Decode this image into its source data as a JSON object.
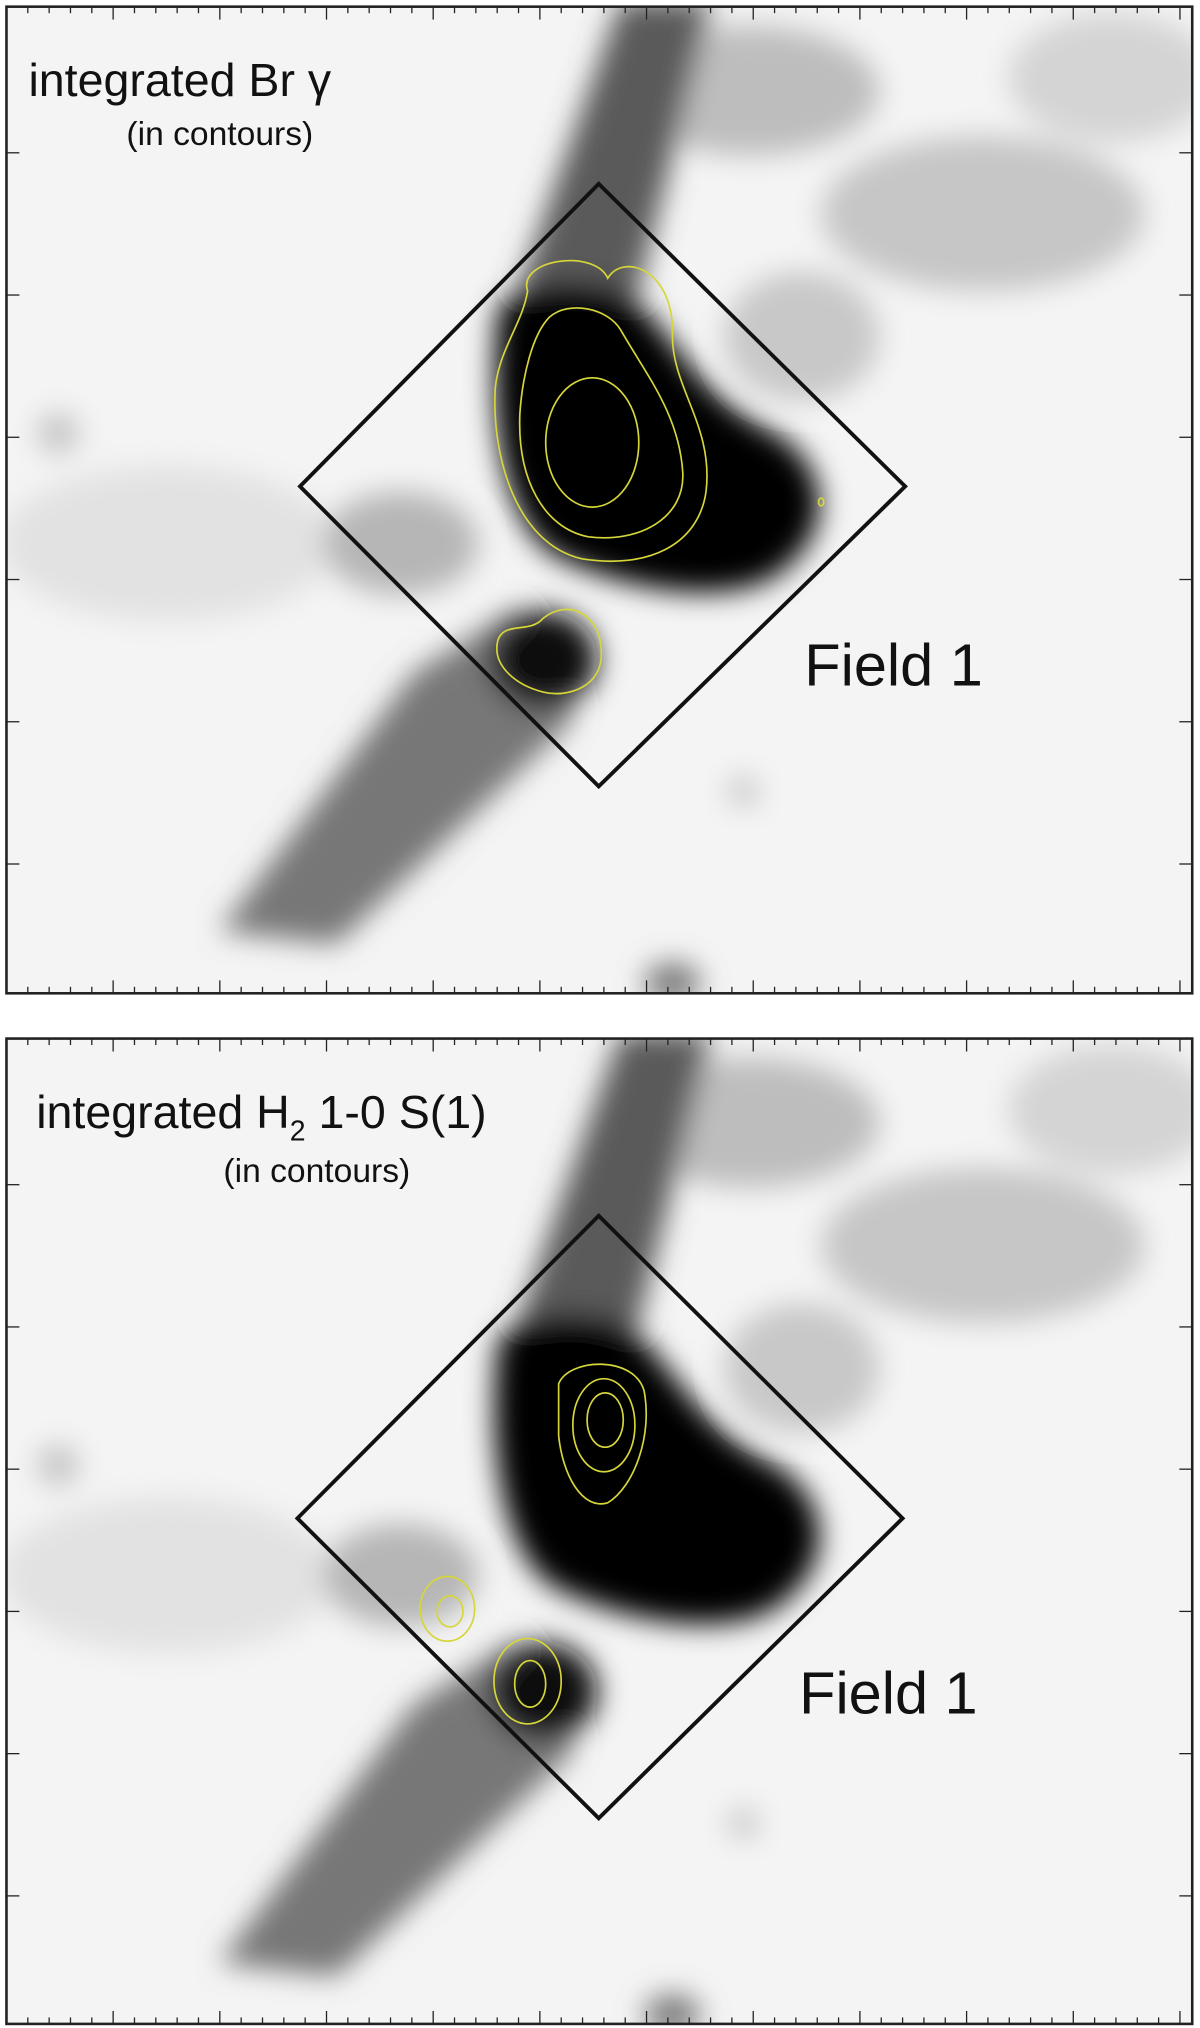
{
  "panels": [
    {
      "title": "integrated Br γ",
      "subtitle": "(in contours)",
      "field_label": "Field 1"
    },
    {
      "title_parts": [
        "integrated H",
        "2",
        " 1-0 S(1)"
      ],
      "subtitle": "(in contours)",
      "field_label": "Field 1"
    }
  ]
}
